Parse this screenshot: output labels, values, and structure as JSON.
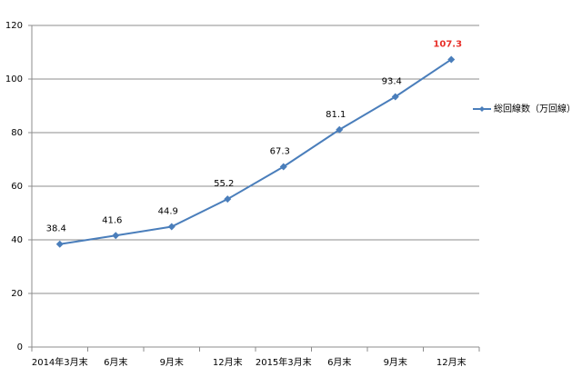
{
  "chart_data": {
    "type": "line",
    "categories": [
      "2014年3月末",
      "6月末",
      "9月末",
      "12月末",
      "2015年3月末",
      "6月末",
      "9月末",
      "12月末"
    ],
    "series": [
      {
        "name": "総回線数（万回線）",
        "color": "#4a7ebb",
        "values": [
          38.4,
          41.6,
          44.9,
          55.2,
          67.3,
          81.1,
          93.4,
          107.3
        ],
        "value_label_colors": [
          "#000000",
          "#000000",
          "#000000",
          "#000000",
          "#000000",
          "#000000",
          "#000000",
          "#e8302a"
        ]
      }
    ],
    "ylim": [
      0,
      120
    ],
    "yticks": [
      0,
      20,
      40,
      60,
      80,
      100,
      120
    ],
    "grid": true,
    "legend": "right"
  }
}
